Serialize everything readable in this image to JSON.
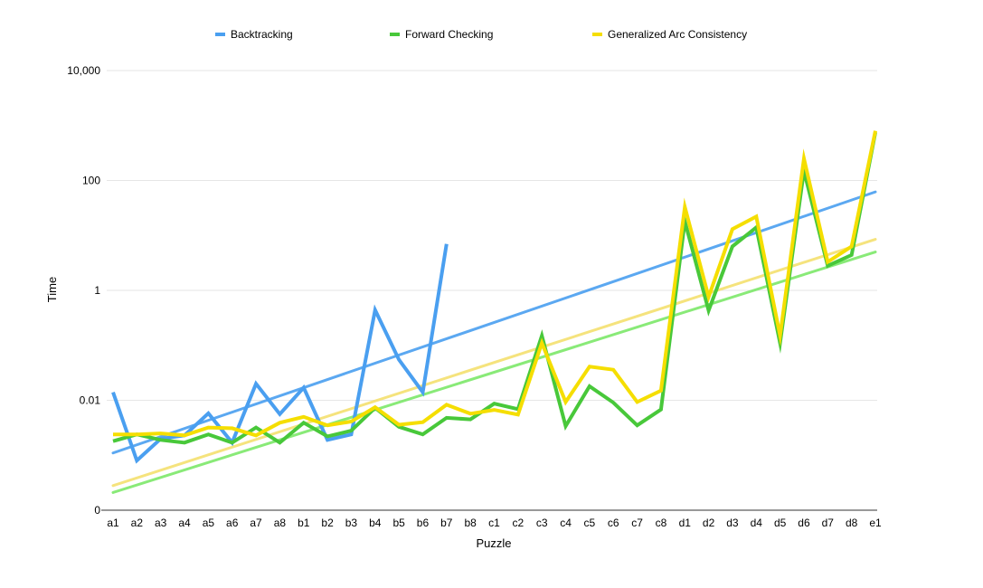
{
  "chart_data": {
    "type": "line",
    "xlabel": "Puzzle",
    "ylabel": "Time",
    "scale_y": "log",
    "ylim": [
      0.0001,
      10000
    ],
    "grid": true,
    "legend_position": "top",
    "y_ticks": [
      {
        "value": 0.0001,
        "label": "0"
      },
      {
        "value": 0.01,
        "label": "0.01"
      },
      {
        "value": 1,
        "label": "1"
      },
      {
        "value": 100,
        "label": "100"
      },
      {
        "value": 10000,
        "label": "10,000"
      }
    ],
    "categories": [
      "a1",
      "a2",
      "a3",
      "a4",
      "a5",
      "a6",
      "a7",
      "a8",
      "b1",
      "b2",
      "b3",
      "b4",
      "b5",
      "b6",
      "b7",
      "b8",
      "c1",
      "c2",
      "c3",
      "c4",
      "c5",
      "c6",
      "c7",
      "c8",
      "d1",
      "d2",
      "d3",
      "d4",
      "d5",
      "d6",
      "d7",
      "d8",
      "e1"
    ],
    "series": [
      {
        "name": "Backtracking",
        "color": "#4a9ff0",
        "values": [
          0.014,
          0.0008,
          0.002,
          0.0023,
          0.0058,
          0.0017,
          0.02,
          0.0056,
          0.017,
          0.0019,
          0.0024,
          0.44,
          0.055,
          0.014,
          7.0,
          null,
          null,
          null,
          null,
          null,
          null,
          null,
          null,
          null,
          null,
          null,
          null,
          null,
          null,
          null,
          null,
          null,
          null
        ]
      },
      {
        "name": "Forward Checking",
        "color": "#48c83a",
        "values": [
          0.0018,
          0.0024,
          0.0019,
          0.0017,
          0.0024,
          0.0017,
          0.0032,
          0.0017,
          0.0039,
          0.0022,
          0.0028,
          0.0073,
          0.0033,
          0.0024,
          0.0048,
          0.0045,
          0.0087,
          0.0069,
          0.15,
          0.0034,
          0.018,
          0.0091,
          0.0035,
          0.0068,
          18.0,
          0.43,
          6.3,
          14.0,
          0.11,
          150.0,
          2.8,
          4.4,
          750.0
        ]
      },
      {
        "name": "Generalized Arc Consistency",
        "color": "#f5de00",
        "values": [
          0.0024,
          0.0024,
          0.0025,
          0.0023,
          0.0032,
          0.0031,
          0.0023,
          0.0039,
          0.005,
          0.0035,
          0.0041,
          0.0075,
          0.0036,
          0.004,
          0.0083,
          0.0057,
          0.0067,
          0.0055,
          0.11,
          0.0093,
          0.041,
          0.036,
          0.0093,
          0.015,
          33.0,
          0.76,
          13.0,
          22.0,
          0.15,
          250.0,
          3.3,
          6.3,
          800.0
        ]
      }
    ],
    "trendlines": [
      {
        "series": "Backtracking",
        "color": "#4a9ff0",
        "start": 0.0011,
        "end": 62.0
      },
      {
        "series": "Forward Checking",
        "color": "#7de86a",
        "start": 0.00021,
        "end": 5.0
      },
      {
        "series": "Generalized Arc Consistency",
        "color": "#f5e070",
        "start": 0.00028,
        "end": 8.5
      }
    ]
  }
}
